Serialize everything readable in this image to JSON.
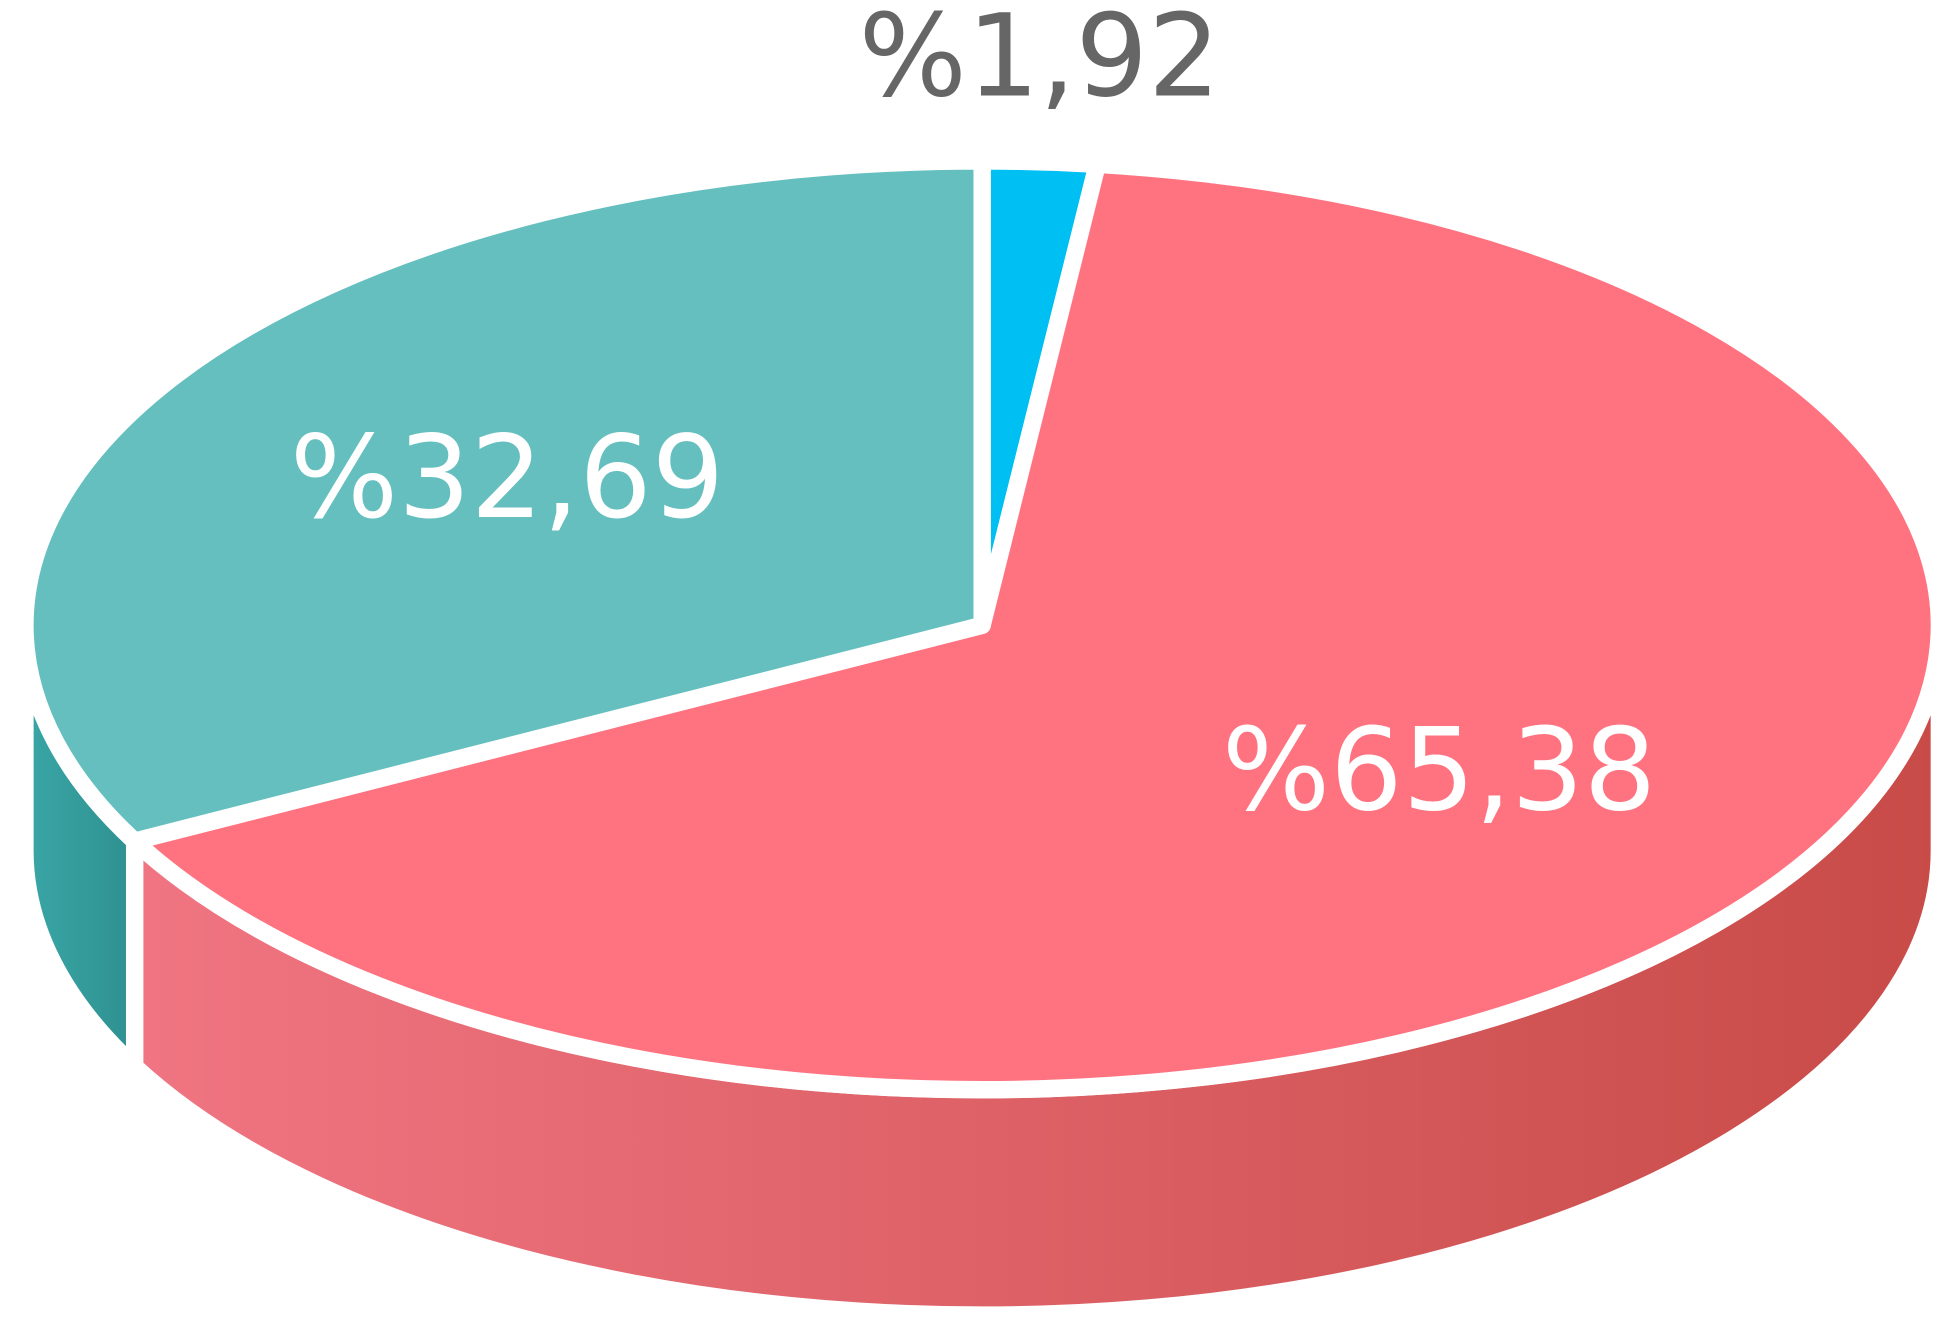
{
  "chart_data": {
    "type": "pie",
    "categories": [
      null,
      null,
      null
    ],
    "values": [
      1.92,
      65.38,
      32.69
    ],
    "value_labels": [
      "%1,92",
      "%65,38",
      "%32,69"
    ],
    "colors": [
      "#00bff3",
      "#ff7380",
      "#65bfbf"
    ]
  }
}
